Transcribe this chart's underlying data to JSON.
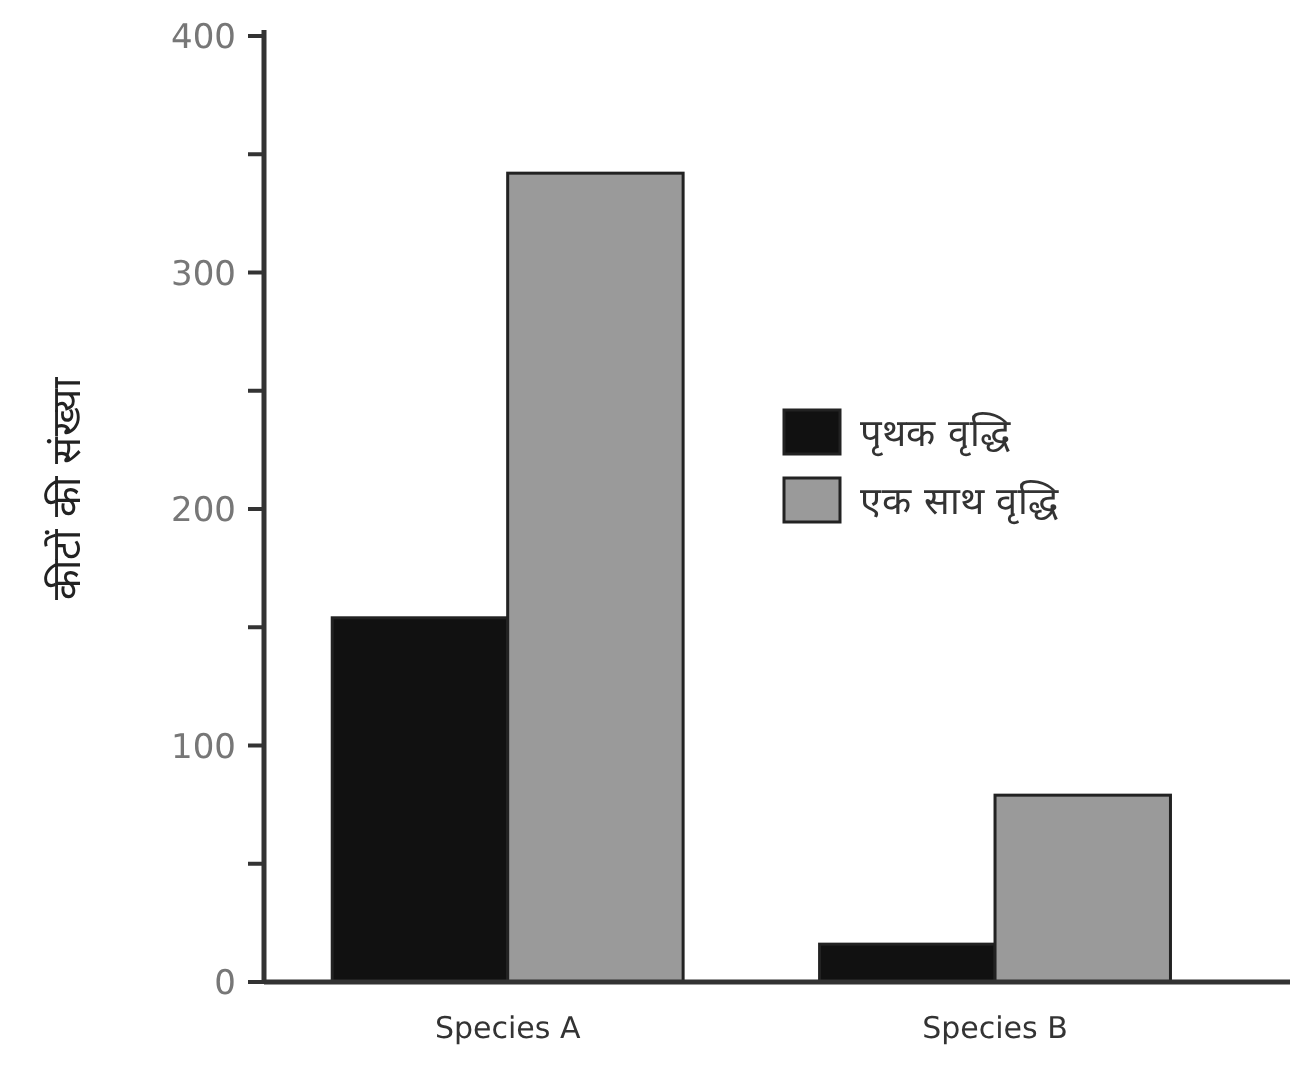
{
  "chart_data": {
    "type": "bar",
    "ylabel": "कीटों की संख्या",
    "categories": [
      "Species A",
      "Species B"
    ],
    "series": [
      {
        "name": "पृथक वृद्धि",
        "color": "#111111",
        "values": [
          154,
          16
        ]
      },
      {
        "name": "एक साथ वृद्धि",
        "color": "#9a9a9a",
        "values": [
          342,
          79
        ]
      }
    ],
    "ylim": [
      0,
      400
    ],
    "yticks": [
      0,
      {
        "value": 50,
        "label": null
      },
      100,
      {
        "value": 150,
        "label": null
      },
      200,
      {
        "value": 250,
        "label": null
      },
      300,
      {
        "value": 350,
        "label": null
      },
      400
    ],
    "grid": false,
    "legend": "right"
  }
}
